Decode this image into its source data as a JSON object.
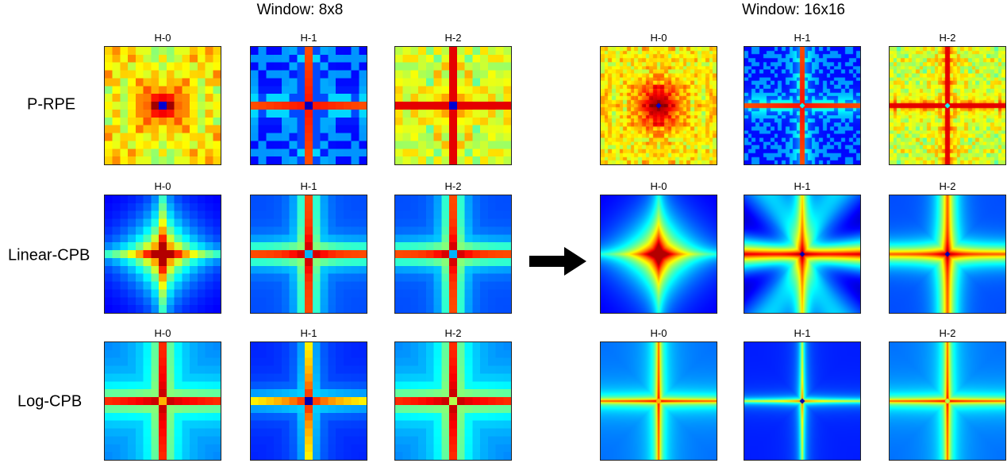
{
  "windows": [
    {
      "title": "Window: 8x8",
      "size": 8
    },
    {
      "title": "Window: 16x16",
      "size": 16
    }
  ],
  "rows": [
    {
      "label": "P-RPE",
      "method": "p-rpe"
    },
    {
      "label": "Linear-CPB",
      "method": "linear-cpb"
    },
    {
      "label": "Log-CPB",
      "method": "log-cpb"
    }
  ],
  "heads": [
    "H-0",
    "H-1",
    "H-2"
  ],
  "colormap": "jet",
  "arrow": {
    "icon": "right-arrow-icon",
    "color": "#000000"
  }
}
